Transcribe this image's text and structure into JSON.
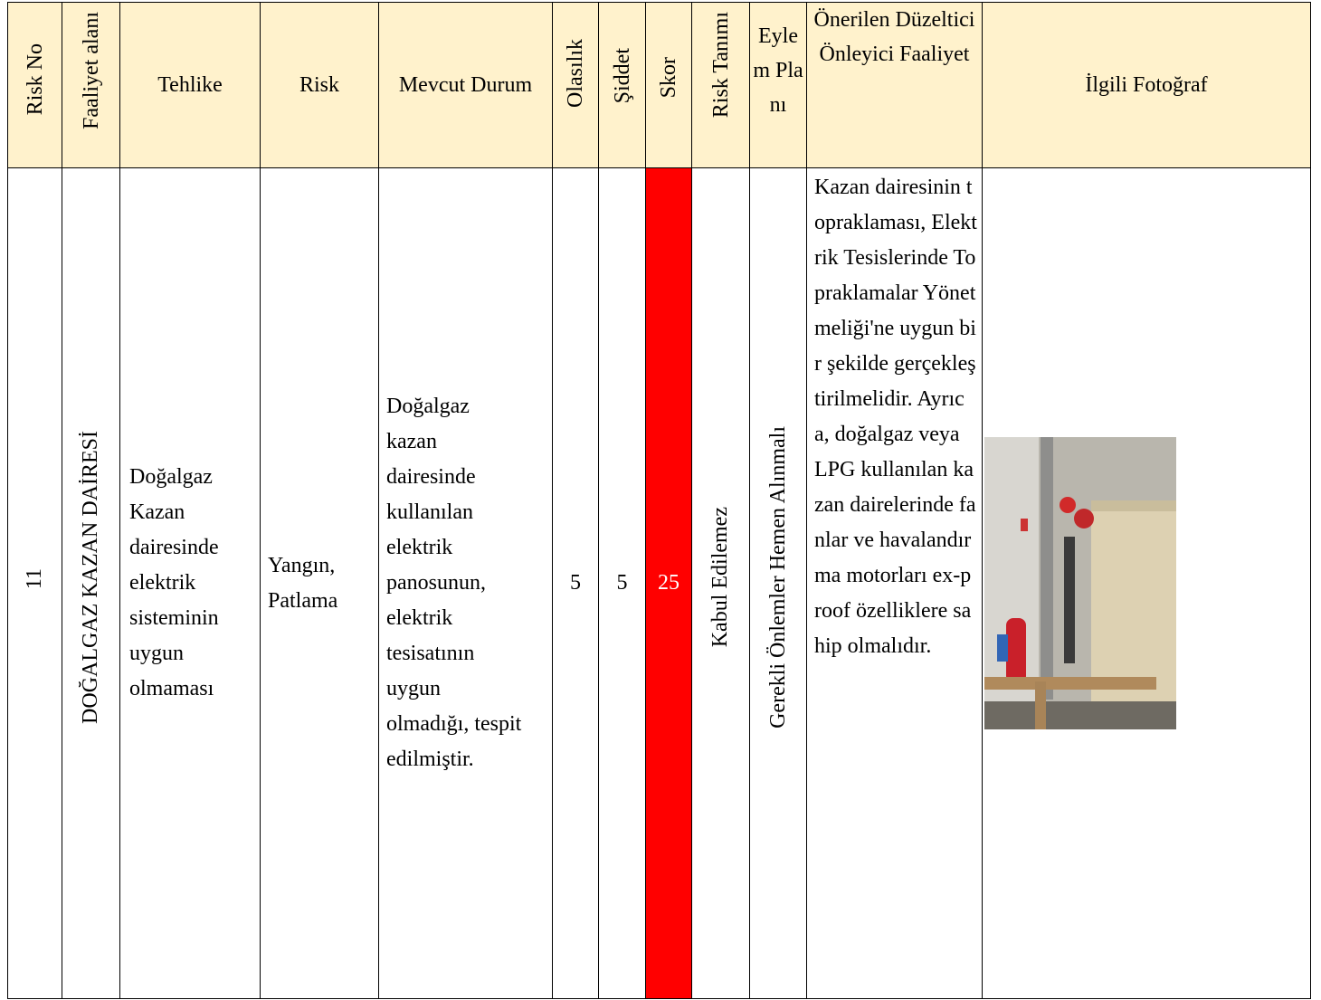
{
  "table": {
    "columns": [
      "Risk No",
      "Faaliyet alanı",
      "Tehlike",
      "Risk",
      "Mevcut Durum",
      "Olasılık",
      "Şiddet",
      "Skor",
      "Risk Tanımı",
      "Eylem Planı",
      "Önerilen Düzeltici Önleyici Faaliyet",
      "İlgili Fotoğraf"
    ],
    "rows": [
      [
        "11",
        "DOĞALGAZ KAZAN DAİRESİ",
        "Doğalgaz Kazan dairesinde elektrik sisteminin uygun olmaması",
        "Yangın, Patlama",
        "Doğalgaz kazan dairesinde kullanılan elektrik panosunun, elektrik tesisatının uygun olmadığı, tespit edilmiştir.",
        "5",
        "5",
        "25",
        "Kabul Edilemez",
        "Gerekli Önlemler Hemen Alınmalı",
        "Kazan dairesinin topraklaması, Elektrik Tesislerinde Topraklamalar Yönetmeliği'ne uygun bir şekilde gerçekleştirilmelidir. Ayrıca, doğalgaz veya LPG kullanılan kazan dairelerinde fanlar ve havalandırma motorları ex-proof özelliklere sahip olmalıdır."
      ]
    ]
  }
}
